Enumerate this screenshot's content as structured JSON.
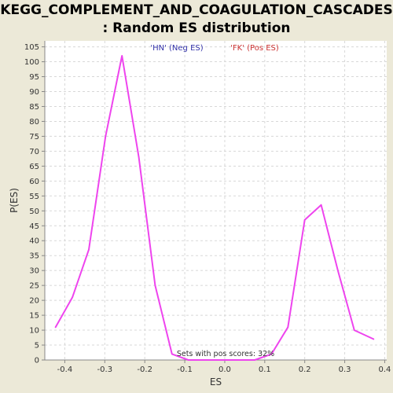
{
  "title_line1": "KEGG_COMPLEMENT_AND_COAGULATION_CASCADES",
  "title_line2": ": Random ES distribution",
  "chart_data": {
    "type": "line",
    "xlabel": "ES",
    "ylabel": "P(ES)",
    "xlim": [
      -0.45,
      0.405
    ],
    "ylim": [
      0,
      107
    ],
    "x_ticks": [
      "-0.4",
      "-0.3",
      "-0.2",
      "-0.1",
      "0.0",
      "0.1",
      "0.2",
      "0.3",
      "0.4"
    ],
    "x_tick_values": [
      -0.4,
      -0.3,
      -0.2,
      -0.1,
      0.0,
      0.1,
      0.2,
      0.3,
      0.4
    ],
    "y_ticks": [
      "0",
      "5",
      "10",
      "15",
      "20",
      "25",
      "30",
      "35",
      "40",
      "45",
      "50",
      "55",
      "60",
      "65",
      "70",
      "75",
      "80",
      "85",
      "90",
      "95",
      "100",
      "105"
    ],
    "y_tick_values": [
      0,
      5,
      10,
      15,
      20,
      25,
      30,
      35,
      40,
      45,
      50,
      55,
      60,
      65,
      70,
      75,
      80,
      85,
      90,
      95,
      100,
      105
    ],
    "grid": true,
    "legend": [
      {
        "label": "'HN' (Neg ES)",
        "color": "#3333AA"
      },
      {
        "label": "'FK' (Pos ES)",
        "color": "#CC3333"
      }
    ],
    "annotation": "Sets with pos scores: 32%",
    "series": [
      {
        "color": "#EE44EE",
        "x": [
          -0.423,
          -0.381,
          -0.34,
          -0.298,
          -0.257,
          -0.215,
          -0.174,
          -0.132,
          -0.091,
          0.075,
          0.117,
          0.158,
          0.2,
          0.241,
          0.283,
          0.324,
          0.372
        ],
        "y": [
          11,
          21,
          37,
          75,
          102,
          68,
          25,
          2,
          0,
          0,
          2,
          11,
          47,
          52,
          30,
          10,
          7
        ]
      }
    ]
  }
}
